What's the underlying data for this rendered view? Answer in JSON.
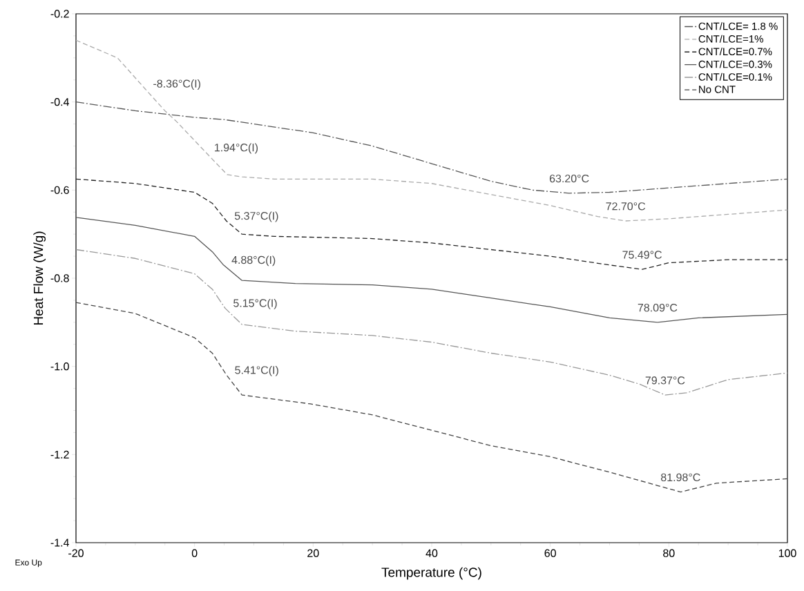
{
  "chart_data": {
    "type": "line",
    "xlabel": "Temperature (°C)",
    "ylabel": "Heat Flow (W/g)",
    "xlim": [
      -20,
      100
    ],
    "ylim": [
      -1.4,
      -0.2
    ],
    "xticks": [
      -20,
      0,
      20,
      40,
      60,
      80,
      100
    ],
    "yticks": [
      {
        "value": -1.4,
        "label": "-1.4"
      },
      {
        "value": -1.2,
        "label": "-1.2"
      },
      {
        "value": -1.0,
        "label": "-1.0"
      },
      {
        "value": -0.8,
        "label": "-0.8"
      },
      {
        "value": -0.6,
        "label": "-0.6"
      },
      {
        "value": -0.4,
        "label": "-0.4"
      },
      {
        "value": -0.2,
        "label": "-0.2"
      }
    ],
    "grid": false,
    "legend": "top right",
    "series": [
      {
        "name": "CNT/LCE= 1.8 %",
        "color": "#555555",
        "line_style": "dashdot",
        "x": [
          -20,
          -10,
          0,
          5,
          10,
          20,
          30,
          40,
          50,
          57,
          63.2,
          70,
          80,
          90,
          100
        ],
        "values": [
          -0.4,
          -0.42,
          -0.435,
          -0.44,
          -0.45,
          -0.47,
          -0.5,
          -0.54,
          -0.58,
          -0.6,
          -0.607,
          -0.605,
          -0.595,
          -0.585,
          -0.575
        ]
      },
      {
        "name": "CNT/LCE=1%",
        "color": "#aaaaaa",
        "line_style": "dashed",
        "x": [
          -20,
          -13,
          -8.36,
          -5,
          -3,
          1.94,
          5.5,
          8,
          13.5,
          30,
          40,
          50,
          60,
          68,
          72.7,
          80,
          90,
          100
        ],
        "values": [
          -0.26,
          -0.3,
          -0.37,
          -0.42,
          -0.445,
          -0.515,
          -0.565,
          -0.57,
          -0.575,
          -0.575,
          -0.585,
          -0.61,
          -0.635,
          -0.66,
          -0.67,
          -0.665,
          -0.655,
          -0.645
        ]
      },
      {
        "name": "CNT/LCE=0.7%",
        "color": "#222222",
        "line_style": "dashed",
        "x": [
          -20,
          -10,
          0,
          3,
          5.37,
          8,
          13.5,
          30,
          40,
          50,
          60,
          70,
          75.49,
          80,
          90,
          100
        ],
        "values": [
          -0.575,
          -0.585,
          -0.605,
          -0.63,
          -0.67,
          -0.7,
          -0.705,
          -0.71,
          -0.72,
          -0.735,
          -0.75,
          -0.77,
          -0.78,
          -0.765,
          -0.758,
          -0.758
        ]
      },
      {
        "name": "CNT/LCE=0.3%",
        "color": "#555555",
        "line_style": "solid",
        "x": [
          -20,
          -10,
          0,
          3,
          4.88,
          8,
          17,
          30,
          40,
          50,
          60,
          70,
          78.09,
          85,
          100
        ],
        "values": [
          -0.662,
          -0.68,
          -0.705,
          -0.74,
          -0.77,
          -0.805,
          -0.812,
          -0.815,
          -0.825,
          -0.845,
          -0.865,
          -0.89,
          -0.9,
          -0.89,
          -0.882
        ]
      },
      {
        "name": "CNT/LCE=0.1%",
        "color": "#999999",
        "line_style": "dashdot",
        "x": [
          -20,
          -10,
          0,
          3,
          5.15,
          8,
          17,
          30,
          40,
          50,
          60,
          70,
          75,
          79.37,
          83,
          90,
          100
        ],
        "values": [
          -0.735,
          -0.755,
          -0.79,
          -0.825,
          -0.868,
          -0.905,
          -0.92,
          -0.93,
          -0.945,
          -0.97,
          -0.99,
          -1.02,
          -1.04,
          -1.065,
          -1.06,
          -1.03,
          -1.015
        ]
      },
      {
        "name": "No CNT",
        "color": "#444444",
        "line_style": "dashed",
        "x": [
          -20,
          -10,
          0,
          3,
          5.41,
          8,
          19.5,
          30,
          40,
          50,
          60,
          70,
          78,
          81.98,
          88,
          100
        ],
        "values": [
          -0.855,
          -0.88,
          -0.935,
          -0.97,
          -1.02,
          -1.065,
          -1.085,
          -1.11,
          -1.145,
          -1.18,
          -1.205,
          -1.24,
          -1.27,
          -1.285,
          -1.265,
          -1.255
        ]
      }
    ],
    "annotations": [
      {
        "text": "-8.36°C(I)",
        "x": -8.36,
        "y": -0.37
      },
      {
        "text": "1.94°C(I)",
        "x": 1.94,
        "y": -0.515
      },
      {
        "text": "5.37°C(I)",
        "x": 5.37,
        "y": -0.67
      },
      {
        "text": "4.88°C(I)",
        "x": 4.88,
        "y": -0.77
      },
      {
        "text": "5.15°C(I)",
        "x": 5.15,
        "y": -0.868
      },
      {
        "text": "5.41°C(I)",
        "x": 5.41,
        "y": -1.02
      },
      {
        "text": "63.20°C",
        "x": 63.2,
        "y": -0.607
      },
      {
        "text": "72.70°C",
        "x": 72.7,
        "y": -0.67
      },
      {
        "text": "75.49°C",
        "x": 75.49,
        "y": -0.78
      },
      {
        "text": "78.09°C",
        "x": 78.09,
        "y": -0.9
      },
      {
        "text": "79.37°C",
        "x": 79.37,
        "y": -1.065
      },
      {
        "text": "81.98°C",
        "x": 81.98,
        "y": -1.285
      },
      "Exo Up"
    ]
  }
}
